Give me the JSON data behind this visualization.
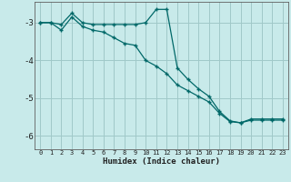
{
  "title": "",
  "xlabel": "Humidex (Indice chaleur)",
  "bg_color": "#c8eaea",
  "grid_color": "#a0c8c8",
  "line_color": "#006868",
  "xlim": [
    -0.5,
    23.5
  ],
  "ylim": [
    -6.35,
    -2.45
  ],
  "yticks": [
    -6,
    -5,
    -4,
    -3
  ],
  "xticks": [
    0,
    1,
    2,
    3,
    4,
    5,
    6,
    7,
    8,
    9,
    10,
    11,
    12,
    13,
    14,
    15,
    16,
    17,
    18,
    19,
    20,
    21,
    22,
    23
  ],
  "line1_x": [
    0,
    1,
    2,
    3,
    4,
    5,
    6,
    7,
    8,
    9,
    10,
    11,
    12,
    13,
    14,
    15,
    16,
    17,
    18,
    19,
    20,
    21,
    22,
    23
  ],
  "line1_y": [
    -3.0,
    -3.0,
    -3.05,
    -2.75,
    -3.0,
    -3.05,
    -3.05,
    -3.05,
    -3.05,
    -3.05,
    -3.0,
    -2.65,
    -2.65,
    -4.2,
    -4.5,
    -4.75,
    -4.95,
    -5.35,
    -5.6,
    -5.65,
    -5.55,
    -5.55,
    -5.55,
    -5.55
  ],
  "line2_x": [
    0,
    1,
    2,
    3,
    4,
    5,
    6,
    7,
    8,
    9,
    10,
    11,
    12,
    13,
    14,
    15,
    16,
    17,
    18,
    19,
    20,
    21,
    22,
    23
  ],
  "line2_y": [
    -3.0,
    -3.0,
    -3.2,
    -2.85,
    -3.1,
    -3.2,
    -3.25,
    -3.4,
    -3.55,
    -3.6,
    -4.0,
    -4.15,
    -4.35,
    -4.65,
    -4.8,
    -4.95,
    -5.1,
    -5.4,
    -5.62,
    -5.65,
    -5.58,
    -5.58,
    -5.58,
    -5.58
  ]
}
